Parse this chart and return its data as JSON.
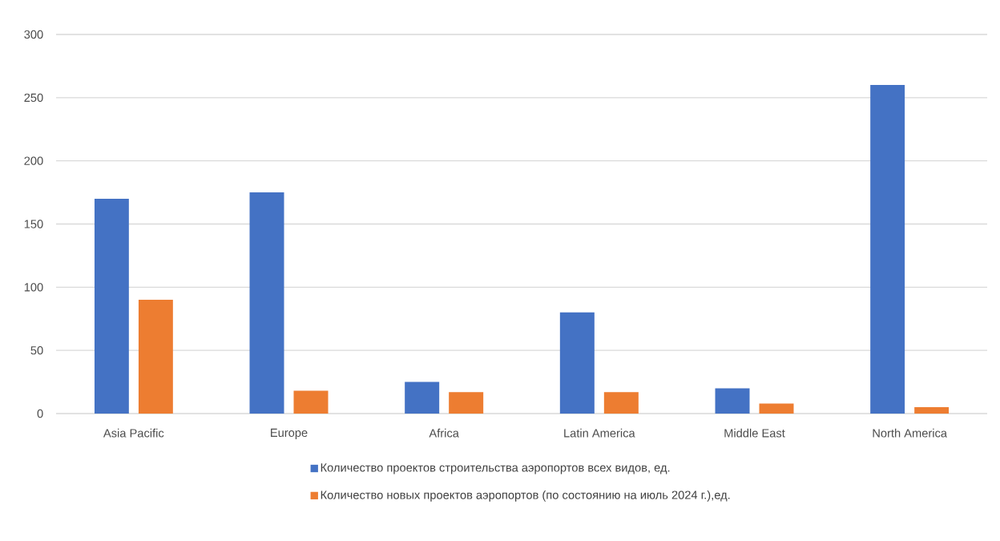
{
  "chart_data": {
    "type": "bar",
    "categories": [
      "Asia Pacific",
      "Europe",
      "Africa",
      "Latin America",
      "Middle East",
      "North America"
    ],
    "series": [
      {
        "name": "Количество проектов строительства аэропортов всех видов, ед.",
        "color": "#4472c4",
        "values": [
          170,
          175,
          25,
          80,
          20,
          260
        ]
      },
      {
        "name": "Количество новых проектов аэропортов (по состоянию на июль 2024 г.),ед.",
        "color": "#ed7d31",
        "values": [
          90,
          18,
          17,
          17,
          8,
          5
        ]
      }
    ],
    "ylim": [
      0,
      300
    ],
    "yticks": [
      0,
      50,
      100,
      150,
      200,
      250,
      300
    ],
    "grid": "y",
    "legend": "bottom"
  }
}
